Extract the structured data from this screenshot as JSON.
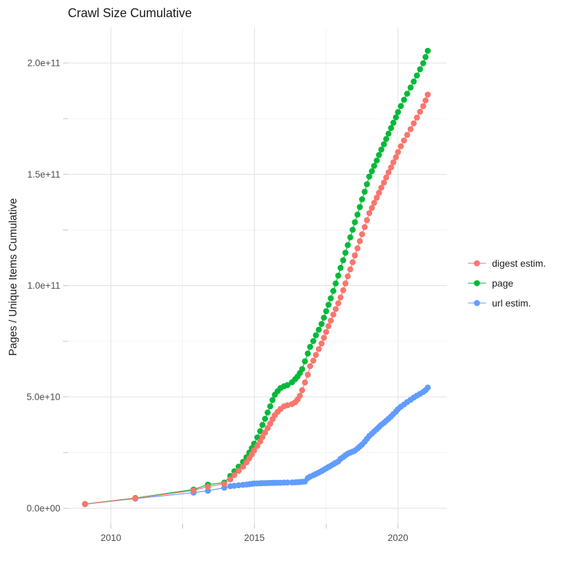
{
  "title": "Crawl Size Cumulative",
  "y_axis_title": "Pages / Unique Items Cumulative",
  "colors": {
    "digest": "#F8766D",
    "page": "#00BA38",
    "url": "#619CFF",
    "grid_major": "#E3E3E3",
    "grid_minor": "#F1F1F1",
    "tick_mark": "#C2C2C2",
    "axis_text": "#4D4D4D",
    "title_text": "#1A1A1A"
  },
  "legend": [
    {
      "id": "digest",
      "label": "digest estim."
    },
    {
      "id": "page",
      "label": "page"
    },
    {
      "id": "url",
      "label": "url estim."
    }
  ],
  "chart_data": {
    "type": "line",
    "title": "Crawl Size Cumulative",
    "xlabel": "",
    "ylabel": "Pages / Unique Items Cumulative",
    "legend_position": "right",
    "grid": true,
    "values_unit": "billions of pages (1e9)",
    "x_ticks": {
      "labels": [
        "2010",
        "2015",
        "2020"
      ],
      "values": [
        2010,
        2015,
        2020
      ]
    },
    "x_minor_ticks": [
      2012.5,
      2017.5
    ],
    "y_ticks": {
      "labels": [
        "0.0e+00",
        "5.0e+10",
        "1.0e+11",
        "1.5e+11",
        "2.0e+11"
      ],
      "values": [
        0,
        50,
        100,
        150,
        200
      ]
    },
    "y_minor_ticks": [
      25,
      75,
      125,
      175
    ],
    "xlim": [
      2008.5,
      2021.7
    ],
    "ylim": [
      -7,
      216
    ],
    "x": [
      2009.1,
      2010.85,
      2012.88,
      2013.38,
      2013.95,
      2014.16,
      2014.3,
      2014.45,
      2014.6,
      2014.72,
      2014.82,
      2014.91,
      2014.99,
      2015.1,
      2015.2,
      2015.28,
      2015.37,
      2015.46,
      2015.55,
      2015.63,
      2015.71,
      2015.81,
      2015.91,
      2016.03,
      2016.15,
      2016.31,
      2016.42,
      2016.5,
      2016.58,
      2016.66,
      2016.76,
      2016.86,
      2016.94,
      2017.05,
      2017.14,
      2017.24,
      2017.34,
      2017.42,
      2017.5,
      2017.58,
      2017.66,
      2017.75,
      2017.83,
      2017.92,
      2018.0,
      2018.09,
      2018.17,
      2018.25,
      2018.34,
      2018.42,
      2018.5,
      2018.59,
      2018.67,
      2018.75,
      2018.84,
      2018.92,
      2019.0,
      2019.09,
      2019.17,
      2019.26,
      2019.34,
      2019.42,
      2019.51,
      2019.59,
      2019.67,
      2019.76,
      2019.84,
      2019.93,
      2020.0,
      2020.1,
      2020.21,
      2020.32,
      2020.44,
      2020.55,
      2020.66,
      2020.77,
      2020.88,
      2020.96,
      2021.04
    ],
    "series": [
      {
        "name": "page",
        "color_key": "page",
        "values": [
          1.9,
          4.6,
          8.4,
          10.6,
          11.5,
          14.5,
          16.6,
          18.7,
          20.8,
          22.9,
          25.0,
          27.0,
          29.0,
          31.8,
          34.6,
          37.4,
          40.2,
          43.0,
          45.8,
          48.6,
          51.0,
          52.6,
          54.0,
          54.8,
          55.3,
          56.6,
          58.0,
          59.2,
          60.7,
          62.5,
          66.0,
          69.5,
          72.5,
          75.1,
          77.7,
          80.2,
          82.8,
          85.6,
          88.5,
          91.4,
          94.3,
          97.6,
          101.0,
          104.5,
          108.0,
          111.4,
          114.8,
          118.2,
          121.7,
          125.1,
          128.5,
          131.9,
          135.3,
          138.8,
          142.2,
          145.6,
          149.0,
          151.4,
          153.8,
          156.2,
          158.7,
          161.1,
          163.5,
          165.9,
          168.3,
          170.8,
          173.2,
          175.6,
          178.0,
          180.7,
          183.5,
          186.2,
          189.0,
          191.7,
          194.4,
          197.2,
          199.9,
          202.7,
          205.5
        ]
      },
      {
        "name": "url estim.",
        "color_key": "url",
        "values": [
          1.8,
          4.3,
          7.0,
          7.8,
          9.2,
          9.9,
          10.1,
          10.3,
          10.5,
          10.65,
          10.8,
          10.95,
          11.1,
          11.15,
          11.2,
          11.25,
          11.3,
          11.32,
          11.35,
          11.38,
          11.4,
          11.42,
          11.45,
          11.5,
          11.55,
          11.6,
          11.65,
          11.7,
          11.8,
          11.9,
          12.0,
          13.5,
          14.2,
          14.8,
          15.4,
          16.0,
          16.7,
          17.3,
          17.9,
          18.5,
          19.1,
          19.8,
          20.4,
          21.0,
          22.2,
          23.0,
          23.8,
          24.5,
          25.0,
          25.4,
          25.9,
          26.8,
          27.7,
          28.6,
          29.9,
          31.2,
          32.5,
          33.5,
          34.5,
          35.5,
          36.5,
          37.5,
          38.4,
          39.3,
          40.2,
          41.2,
          42.3,
          43.4,
          44.5,
          45.6,
          46.6,
          47.7,
          48.7,
          49.7,
          50.6,
          51.4,
          52.2,
          53.0,
          54.2
        ]
      },
      {
        "name": "digest estim.",
        "color_key": "digest",
        "values": [
          1.85,
          4.5,
          8.0,
          9.7,
          11.0,
          13.0,
          14.9,
          16.8,
          18.7,
          20.6,
          22.4,
          24.2,
          26.0,
          28.0,
          30.0,
          32.0,
          34.0,
          36.0,
          38.0,
          40.0,
          41.8,
          43.3,
          44.6,
          45.8,
          46.3,
          46.8,
          47.6,
          48.8,
          50.5,
          53.0,
          56.5,
          60.0,
          63.8,
          66.3,
          68.9,
          71.5,
          74.0,
          76.6,
          79.2,
          81.8,
          84.3,
          87.0,
          89.5,
          92.1,
          94.7,
          97.9,
          101.0,
          104.2,
          107.3,
          110.5,
          113.6,
          116.8,
          120.0,
          123.1,
          126.3,
          129.4,
          132.6,
          134.9,
          137.2,
          139.5,
          141.7,
          144.0,
          146.3,
          148.6,
          150.9,
          153.1,
          155.4,
          157.7,
          160.0,
          162.6,
          165.2,
          167.7,
          170.3,
          172.9,
          175.5,
          178.1,
          180.6,
          183.2,
          185.8
        ]
      }
    ]
  }
}
